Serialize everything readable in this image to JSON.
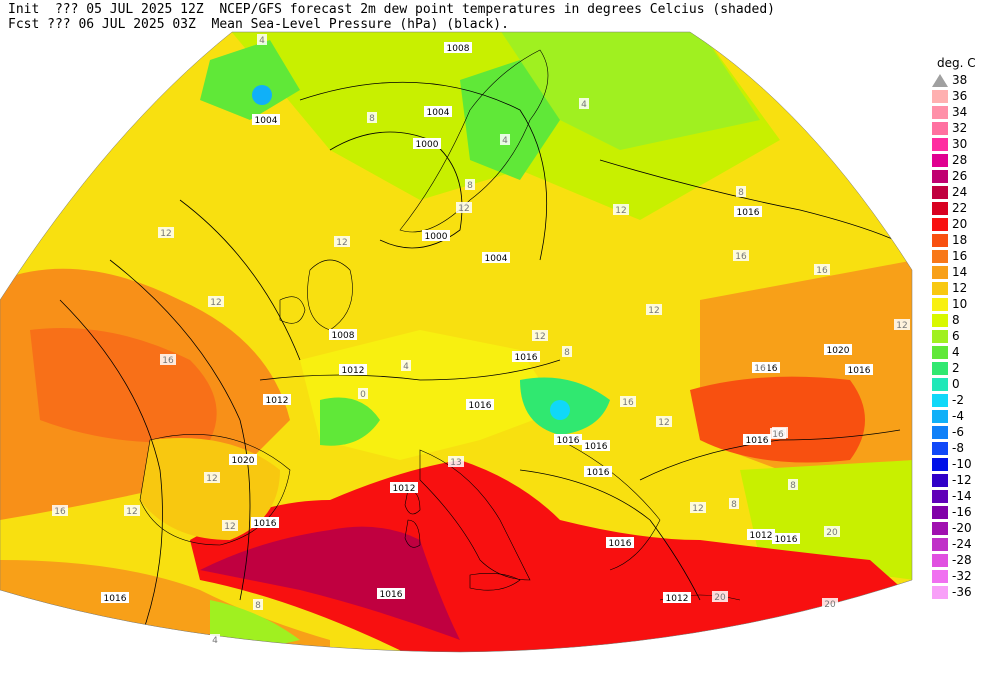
{
  "header": {
    "line1": "Init  ??? 05 JUL 2025 12Z  NCEP/GFS forecast 2m dew point temperatures in degrees Celcius (shaded)",
    "line2": "Fcst ??? 06 JUL 2025 03Z  Mean Sea-Level Pressure (hPa) (black)."
  },
  "colorbar": {
    "title": "deg. C",
    "entries": [
      {
        "label": "38",
        "color": "#a0a0a0",
        "shape": "triangle"
      },
      {
        "label": "36",
        "color": "#ffb0b0"
      },
      {
        "label": "34",
        "color": "#ff90a8"
      },
      {
        "label": "32",
        "color": "#ff70a0"
      },
      {
        "label": "30",
        "color": "#ff2ca0"
      },
      {
        "label": "28",
        "color": "#e00090"
      },
      {
        "label": "26",
        "color": "#c00070"
      },
      {
        "label": "24",
        "color": "#c00040"
      },
      {
        "label": "22",
        "color": "#d80020"
      },
      {
        "label": "20",
        "color": "#f81010"
      },
      {
        "label": "18",
        "color": "#f85010"
      },
      {
        "label": "16",
        "color": "#f87818"
      },
      {
        "label": "14",
        "color": "#f8a018"
      },
      {
        "label": "12",
        "color": "#f8c810"
      },
      {
        "label": "10",
        "color": "#f8f010"
      },
      {
        "label": "8",
        "color": "#d8f800"
      },
      {
        "label": "6",
        "color": "#a0f020"
      },
      {
        "label": "4",
        "color": "#60e838"
      },
      {
        "label": "2",
        "color": "#30e870"
      },
      {
        "label": "0",
        "color": "#20e8b8"
      },
      {
        "label": "-2",
        "color": "#10d8f8"
      },
      {
        "label": "-4",
        "color": "#10b0f8"
      },
      {
        "label": "-6",
        "color": "#1080f8"
      },
      {
        "label": "-8",
        "color": "#1048f8"
      },
      {
        "label": "-10",
        "color": "#0010e8"
      },
      {
        "label": "-12",
        "color": "#3000c8"
      },
      {
        "label": "-14",
        "color": "#6000b8"
      },
      {
        "label": "-16",
        "color": "#8000a8"
      },
      {
        "label": "-20",
        "color": "#a010b0"
      },
      {
        "label": "-24",
        "color": "#c030c8"
      },
      {
        "label": "-28",
        "color": "#e050e0"
      },
      {
        "label": "-32",
        "color": "#f070f0"
      },
      {
        "label": "-36",
        "color": "#f8a0f8"
      }
    ]
  },
  "isobar_labels": [
    "1008",
    "1004",
    "1004",
    "1000",
    "1000",
    "1004",
    "1016",
    "1008",
    "1012",
    "1012",
    "1016",
    "1016",
    "1016",
    "1020",
    "1016",
    "1020",
    "1012",
    "1016",
    "1016",
    "1016",
    "1016",
    "1012",
    "1016",
    "1012",
    "1016",
    "1016",
    "1016",
    "1016"
  ],
  "dewpoint_labels": [
    "4",
    "4",
    "4",
    "8",
    "8",
    "12",
    "12",
    "12",
    "12",
    "8",
    "16",
    "16",
    "12",
    "12",
    "16",
    "13",
    "12",
    "12",
    "20",
    "20",
    "20",
    "8",
    "8",
    "12",
    "12",
    "16",
    "12",
    "16",
    "0",
    "4",
    "12",
    "4",
    "8",
    "12",
    "8",
    "16",
    "16",
    "16"
  ],
  "map": {
    "projection": "conic",
    "region": "Europe"
  }
}
